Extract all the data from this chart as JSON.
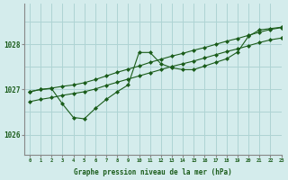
{
  "title": "Graphe pression niveau de la mer (hPa)",
  "bg_color": "#d4ecec",
  "grid_color": "#aed4d4",
  "line_color": "#1a5c1a",
  "xlim": [
    -0.5,
    23
  ],
  "ylim": [
    1025.55,
    1028.9
  ],
  "yticks": [
    1026,
    1027,
    1028
  ],
  "xticks": [
    0,
    1,
    2,
    3,
    4,
    5,
    6,
    7,
    8,
    9,
    10,
    11,
    12,
    13,
    14,
    15,
    16,
    17,
    18,
    19,
    20,
    21,
    22,
    23
  ],
  "series1": {
    "x": [
      0,
      1,
      2,
      3,
      4,
      5,
      6,
      7,
      8,
      9,
      10,
      11,
      12,
      13,
      14,
      15,
      16,
      17,
      18,
      19,
      20,
      21,
      22,
      23
    ],
    "y": [
      1026.95,
      1027.0,
      1027.03,
      1027.07,
      1027.1,
      1027.15,
      1027.22,
      1027.3,
      1027.38,
      1027.45,
      1027.52,
      1027.6,
      1027.67,
      1027.74,
      1027.8,
      1027.87,
      1027.93,
      1028.0,
      1028.07,
      1028.13,
      1028.2,
      1028.27,
      1028.33,
      1028.37
    ]
  },
  "series2": {
    "x": [
      0,
      1,
      2,
      3,
      4,
      5,
      6,
      7,
      8,
      9,
      10,
      11,
      12,
      13,
      14,
      15,
      16,
      17,
      18,
      19,
      20,
      21,
      22,
      23
    ],
    "y": [
      1026.95,
      1027.0,
      1027.02,
      1026.68,
      1026.38,
      1026.35,
      1026.58,
      1026.78,
      1026.95,
      1027.1,
      1027.82,
      1027.82,
      1027.57,
      1027.48,
      1027.44,
      1027.44,
      1027.52,
      1027.6,
      1027.68,
      1027.83,
      1028.18,
      1028.32,
      1028.35,
      1028.38
    ]
  },
  "series3": {
    "x": [
      0,
      1,
      2,
      3,
      4,
      5,
      6,
      7,
      8,
      9,
      10,
      11,
      12,
      13,
      14,
      15,
      16,
      17,
      18,
      19,
      20,
      21,
      22,
      23
    ],
    "y": [
      1026.73,
      1026.78,
      1026.82,
      1026.87,
      1026.91,
      1026.95,
      1027.01,
      1027.09,
      1027.16,
      1027.23,
      1027.3,
      1027.37,
      1027.44,
      1027.51,
      1027.57,
      1027.63,
      1027.7,
      1027.77,
      1027.84,
      1027.9,
      1027.97,
      1028.04,
      1028.1,
      1028.14
    ]
  }
}
